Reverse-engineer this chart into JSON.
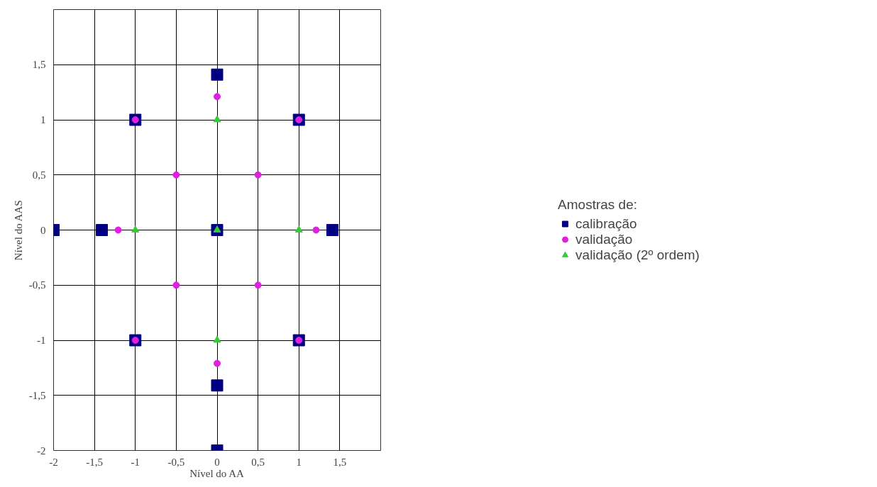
{
  "chart_data": {
    "type": "scatter",
    "xlabel": "Nível do AA",
    "ylabel": "Nível do AAS",
    "legend_title": "Amostras de:",
    "legend": "right",
    "grid": true,
    "xlim": [
      -2,
      2
    ],
    "ylim": [
      -2,
      2
    ],
    "xticks": [
      {
        "value": -2,
        "label": "-2"
      },
      {
        "value": -1.5,
        "label": "-1,5"
      },
      {
        "value": -1,
        "label": "-1"
      },
      {
        "value": -0.5,
        "label": "-0,5"
      },
      {
        "value": 0,
        "label": "0"
      },
      {
        "value": 0.5,
        "label": "0,5"
      },
      {
        "value": 1,
        "label": "1"
      },
      {
        "value": 1.5,
        "label": "1,5"
      }
    ],
    "yticks": [
      {
        "value": -2,
        "label": "-2"
      },
      {
        "value": -1.5,
        "label": "-1,5"
      },
      {
        "value": -1,
        "label": "-1"
      },
      {
        "value": -0.5,
        "label": "-0,5"
      },
      {
        "value": 0,
        "label": "0"
      },
      {
        "value": 0.5,
        "label": "0,5"
      },
      {
        "value": 1,
        "label": "1"
      },
      {
        "value": 1.5,
        "label": "1,5"
      }
    ],
    "series": [
      {
        "name": "calibração",
        "color": "#000080",
        "marker": "square",
        "x": [
          -1,
          1,
          -1,
          1,
          0,
          -1.41,
          1.41,
          0,
          0,
          -2,
          0
        ],
        "values": [
          1,
          1,
          -1,
          -1,
          0,
          0,
          0,
          1.41,
          -1.41,
          0,
          -2
        ]
      },
      {
        "name": "validação",
        "color": "#e020e0",
        "marker": "circle",
        "x": [
          -1,
          1,
          -1,
          1,
          -0.5,
          0.5,
          -0.5,
          0.5,
          -1.21,
          1.21,
          0,
          0
        ],
        "values": [
          1,
          1,
          -1,
          -1,
          0.5,
          0.5,
          -0.5,
          -0.5,
          0,
          0,
          1.21,
          -1.21
        ]
      },
      {
        "name": "validação (2º ordem)",
        "color": "#33cc33",
        "marker": "triangle",
        "x": [
          0,
          -1,
          1,
          0,
          0
        ],
        "values": [
          0,
          0,
          0,
          1,
          -1
        ]
      }
    ]
  }
}
